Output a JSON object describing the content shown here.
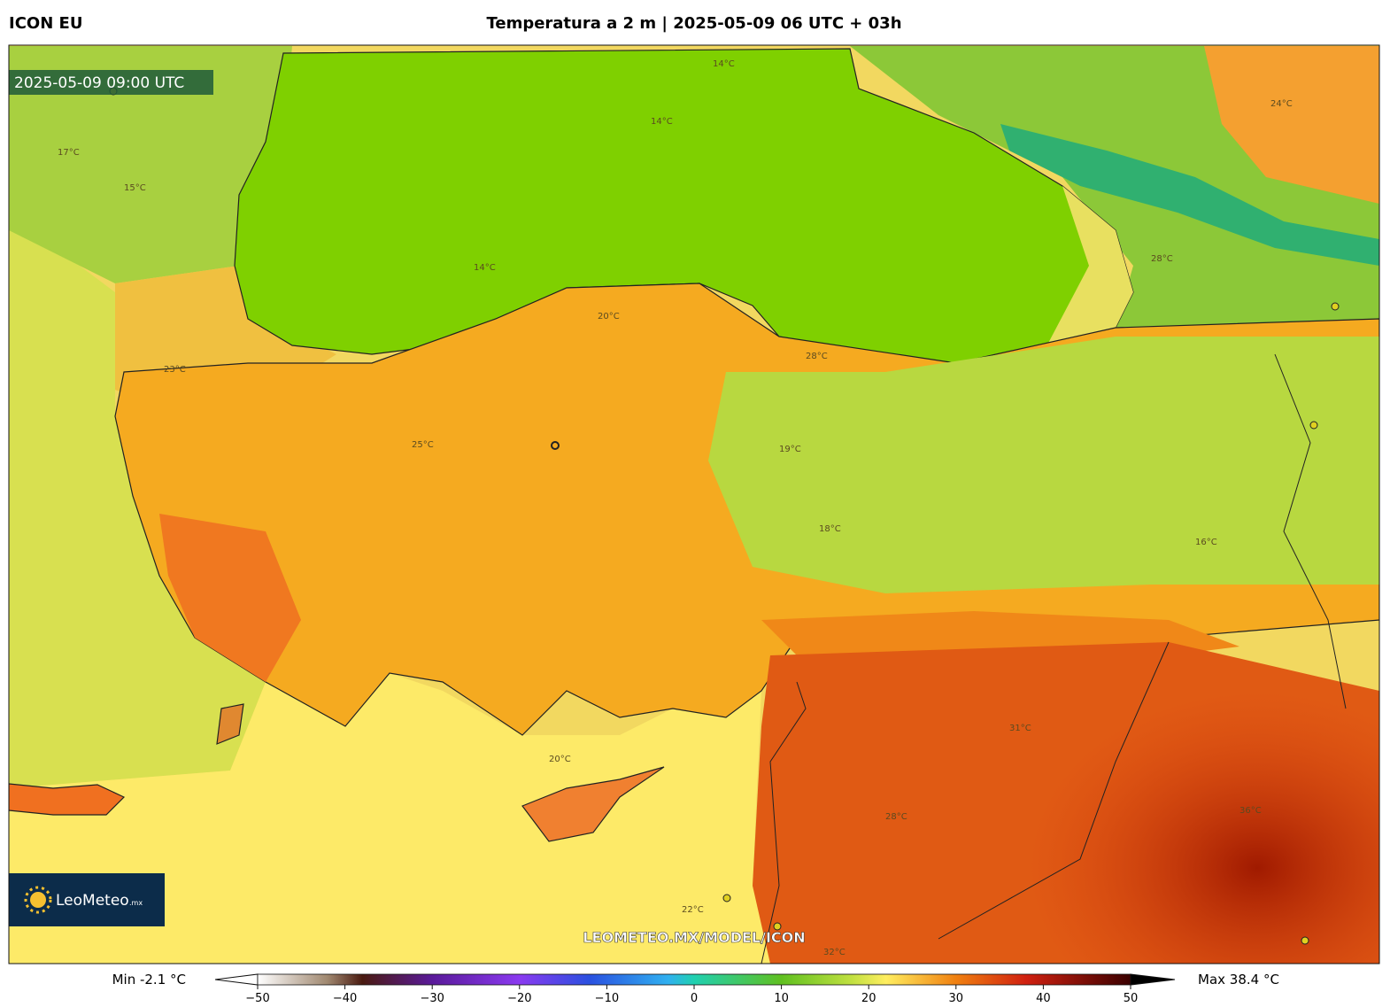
{
  "header": {
    "model": "ICON EU",
    "title": "Temperatura a 2 m | 2025-05-09 06 UTC + 03h"
  },
  "map": {
    "valid_time": "2025-05-09 09:00 UTC",
    "watermark": "LEOMETEO.MX/MODEL/ICON",
    "logo": {
      "name": "LeoMeteo",
      "suffix": ".mx"
    },
    "contour_labels": [
      "14°C",
      "14°C",
      "14°C",
      "17°C",
      "15°C",
      "28°C",
      "28°C",
      "20°C",
      "19°C",
      "25°C",
      "16°C",
      "18°C",
      "23°C",
      "20°C",
      "31°C",
      "36°C",
      "28°C",
      "22°C",
      "32°C",
      "24°C"
    ]
  },
  "colorbar": {
    "min_label": "Min -2.1 °C",
    "max_label": "Max 38.4 °C",
    "ticks": [
      {
        "value": -50,
        "label": "−50"
      },
      {
        "value": -40,
        "label": "−40"
      },
      {
        "value": -30,
        "label": "−30"
      },
      {
        "value": -20,
        "label": "−20"
      },
      {
        "value": -10,
        "label": "−10"
      },
      0,
      10,
      20,
      30,
      40,
      50
    ]
  }
}
